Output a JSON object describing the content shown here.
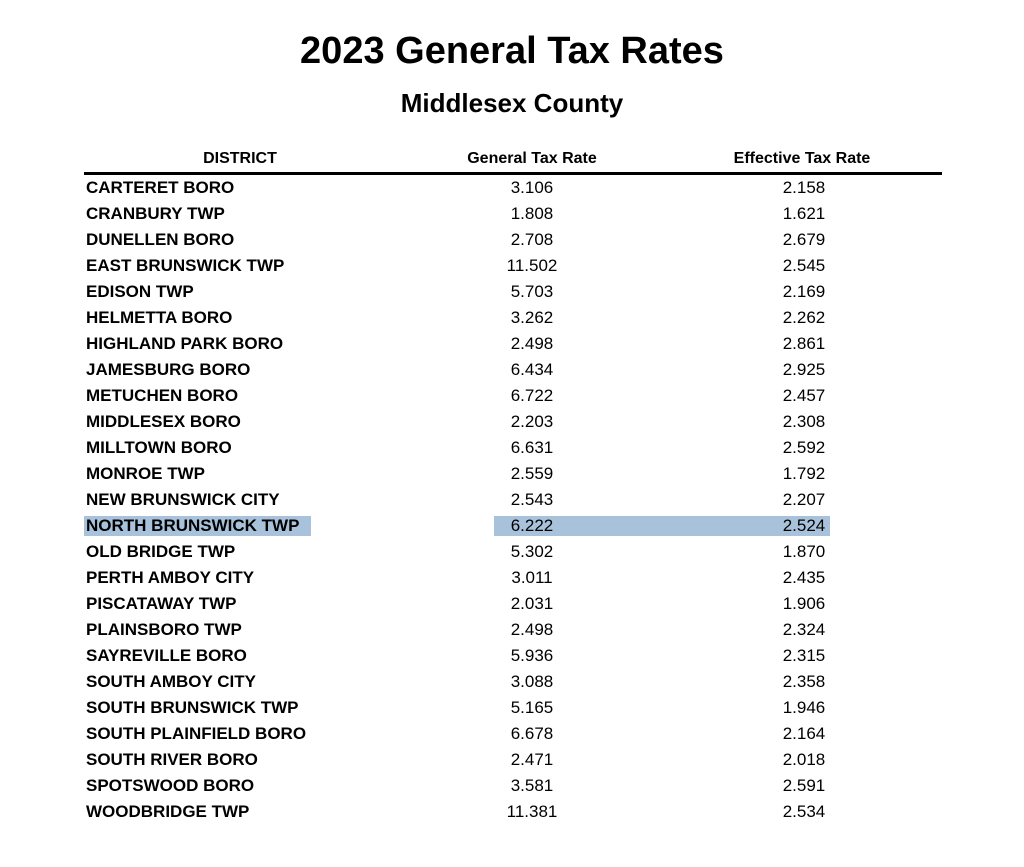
{
  "title": "2023 General Tax Rates",
  "subtitle": "Middlesex County",
  "columns": [
    "DISTRICT",
    "General Tax Rate",
    "Effective Tax Rate"
  ],
  "highlight_color": "#a7c2da",
  "highlighted_district": "NORTH BRUNSWICK TWP",
  "rows": [
    {
      "district": "CARTERET BORO",
      "general": "3.106",
      "effective": "2.158"
    },
    {
      "district": "CRANBURY TWP",
      "general": "1.808",
      "effective": "1.621"
    },
    {
      "district": "DUNELLEN BORO",
      "general": "2.708",
      "effective": "2.679"
    },
    {
      "district": "EAST BRUNSWICK TWP",
      "general": "11.502",
      "effective": "2.545"
    },
    {
      "district": "EDISON TWP",
      "general": "5.703",
      "effective": "2.169"
    },
    {
      "district": "HELMETTA BORO",
      "general": "3.262",
      "effective": "2.262"
    },
    {
      "district": "HIGHLAND PARK BORO",
      "general": "2.498",
      "effective": "2.861"
    },
    {
      "district": "JAMESBURG BORO",
      "general": "6.434",
      "effective": "2.925"
    },
    {
      "district": "METUCHEN BORO",
      "general": "6.722",
      "effective": "2.457"
    },
    {
      "district": "MIDDLESEX BORO",
      "general": "2.203",
      "effective": "2.308"
    },
    {
      "district": "MILLTOWN BORO",
      "general": "6.631",
      "effective": "2.592"
    },
    {
      "district": "MONROE TWP",
      "general": "2.559",
      "effective": "1.792"
    },
    {
      "district": "NEW BRUNSWICK CITY",
      "general": "2.543",
      "effective": "2.207"
    },
    {
      "district": "NORTH BRUNSWICK TWP",
      "general": "6.222",
      "effective": "2.524"
    },
    {
      "district": "OLD BRIDGE TWP",
      "general": "5.302",
      "effective": "1.870"
    },
    {
      "district": "PERTH AMBOY CITY",
      "general": "3.011",
      "effective": "2.435"
    },
    {
      "district": "PISCATAWAY TWP",
      "general": "2.031",
      "effective": "1.906"
    },
    {
      "district": "PLAINSBORO TWP",
      "general": "2.498",
      "effective": "2.324"
    },
    {
      "district": "SAYREVILLE BORO",
      "general": "5.936",
      "effective": "2.315"
    },
    {
      "district": "SOUTH AMBOY CITY",
      "general": "3.088",
      "effective": "2.358"
    },
    {
      "district": "SOUTH BRUNSWICK TWP",
      "general": "5.165",
      "effective": "1.946"
    },
    {
      "district": "SOUTH PLAINFIELD BORO",
      "general": "6.678",
      "effective": "2.164"
    },
    {
      "district": "SOUTH RIVER BORO",
      "general": "2.471",
      "effective": "2.018"
    },
    {
      "district": "SPOTSWOOD BORO",
      "general": "3.581",
      "effective": "2.591"
    },
    {
      "district": "WOODBRIDGE TWP",
      "general": "11.381",
      "effective": "2.534"
    }
  ]
}
